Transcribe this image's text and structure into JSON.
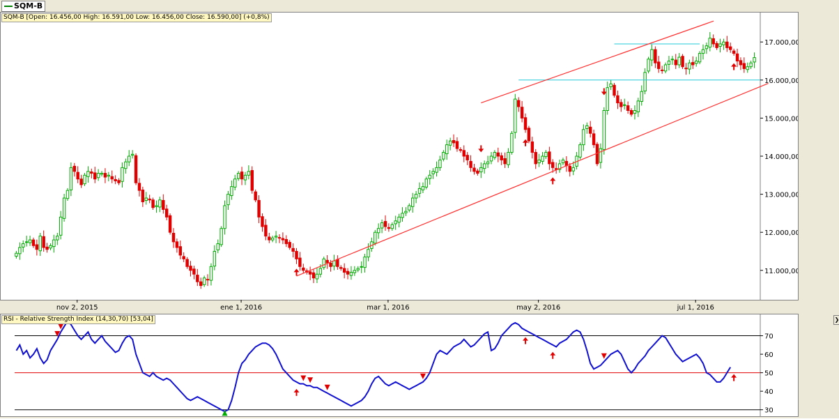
{
  "tab": {
    "label": "SQM-B",
    "color": "#008000"
  },
  "price_legend": "SQM-B [Open: 16.456,00  High: 16.591,00  Low: 16.456,00  Close: 16.590,00] (+0,8%)",
  "rsi_legend": "RSI - Relative Strength Index (14,30,70) [53,04]",
  "colors": {
    "up": "#00aa00",
    "down": "#e00000",
    "channel": "#ff3030",
    "support": "#20c8d8",
    "rsi": "#1010d0",
    "rsi_mid": "#e00000",
    "rsi_band": "#000000",
    "arrow": "#e00000",
    "arrow_up_rsi": "#00aa00"
  },
  "chart_data": [
    {
      "type": "candlestick",
      "series_name": "SQM-B",
      "y_ticks": [
        "11.000,00",
        "12.000,00",
        "13.000,00",
        "14.000,00",
        "15.000,00",
        "16.000,00",
        "17.000,00"
      ],
      "y_tick_values": [
        11000,
        12000,
        13000,
        14000,
        15000,
        16000,
        17000
      ],
      "ylim": [
        10300,
        17700
      ],
      "x_ticks": [
        "nov 2, 2015",
        "ene 1, 2016",
        "mar 1, 2016",
        "may 2, 2016",
        "jul 1, 2016"
      ],
      "x_tick_index": [
        18,
        66,
        109,
        153,
        199
      ],
      "n_candles": 217,
      "closes": [
        11450,
        11600,
        11700,
        11750,
        11800,
        11650,
        11550,
        11900,
        11600,
        11550,
        11650,
        11800,
        11900,
        12400,
        12900,
        13100,
        13700,
        13600,
        13400,
        13250,
        13500,
        13600,
        13550,
        13400,
        13550,
        13550,
        13450,
        13500,
        13400,
        13350,
        13300,
        13700,
        13850,
        14000,
        14050,
        13300,
        13100,
        12800,
        12900,
        12850,
        12650,
        12700,
        12850,
        12600,
        12400,
        12000,
        11750,
        11600,
        11400,
        11300,
        11100,
        11000,
        10900,
        10700,
        10600,
        10800,
        10750,
        11100,
        11500,
        11700,
        12100,
        12700,
        13000,
        13200,
        13400,
        13550,
        13400,
        13500,
        13600,
        13100,
        12850,
        12400,
        12150,
        11900,
        11800,
        11850,
        11900,
        11850,
        11800,
        11700,
        11600,
        11500,
        11300,
        11100,
        11000,
        10950,
        10900,
        10800,
        10900,
        11050,
        11300,
        11200,
        11100,
        11250,
        11100,
        11050,
        10950,
        10900,
        10950,
        11000,
        11050,
        11100,
        11350,
        11550,
        11750,
        12000,
        12100,
        12250,
        12150,
        12100,
        12200,
        12300,
        12400,
        12500,
        12550,
        12700,
        12900,
        13000,
        13150,
        13200,
        13400,
        13500,
        13600,
        13700,
        13900,
        14100,
        14300,
        14400,
        14350,
        14200,
        14150,
        14000,
        13900,
        13700,
        13600,
        13550,
        13700,
        13800,
        13850,
        14000,
        14100,
        14000,
        13900,
        13800,
        14100,
        14600,
        15500,
        15300,
        15000,
        14700,
        14400,
        14100,
        13800,
        13900,
        14000,
        14100,
        13800,
        13700,
        13650,
        13800,
        13900,
        13750,
        13600,
        13700,
        14000,
        14300,
        14700,
        14800,
        14600,
        14300,
        13800,
        14200,
        15200,
        15800,
        15900,
        15600,
        15400,
        15300,
        15350,
        15200,
        15100,
        15200,
        15450,
        15700,
        16200,
        16550,
        16800,
        16450,
        16300,
        16250,
        16400,
        16500,
        16550,
        16400,
        16600,
        16350,
        16300,
        16450,
        16400,
        16500,
        16700,
        16800,
        16900,
        17100,
        16950,
        16850,
        16950,
        17000,
        16850,
        16800,
        16700,
        16500,
        16400,
        16300,
        16350,
        16450,
        16590
      ],
      "support_line": {
        "from_index": 147,
        "value": 16000
      },
      "resistance_line": {
        "from_index": 175,
        "to_index": 200,
        "value": 16950
      },
      "channel_lower": {
        "from": [
          82,
          10850
        ],
        "to": [
          216,
          15950
        ]
      },
      "channel_upper": {
        "from": [
          136,
          15400
        ],
        "to": [
          200,
          17550
        ]
      },
      "down_arrows": [
        136,
        172
      ],
      "up_arrows": [
        82,
        149,
        157,
        210
      ]
    },
    {
      "type": "line",
      "series_name": "RSI - Relative Strength Index (14,30,70)",
      "last_value": 53.04,
      "y_ticks": [
        "30",
        "40",
        "50",
        "60",
        "70"
      ],
      "y_tick_values": [
        30,
        40,
        50,
        60,
        70
      ],
      "ylim": [
        28,
        80
      ],
      "levels": [
        30,
        50,
        70
      ],
      "values": [
        62,
        65,
        60,
        62,
        58,
        60,
        63,
        58,
        55,
        57,
        62,
        65,
        68,
        72,
        75,
        78,
        76,
        73,
        70,
        68,
        70,
        72,
        68,
        66,
        68,
        70,
        67,
        65,
        63,
        61,
        62,
        66,
        69,
        70,
        68,
        60,
        55,
        50,
        49,
        48,
        50,
        48,
        47,
        46,
        47,
        46,
        44,
        42,
        40,
        38,
        36,
        35,
        36,
        37,
        36,
        35,
        34,
        33,
        32,
        31,
        30,
        29,
        30,
        35,
        42,
        50,
        55,
        57,
        60,
        62,
        64,
        65,
        66,
        66,
        65,
        63,
        60,
        56,
        52,
        50,
        48,
        46,
        45,
        44,
        44,
        43,
        43,
        42,
        42,
        41,
        40,
        39,
        38,
        37,
        36,
        35,
        34,
        33,
        32,
        33,
        34,
        35,
        37,
        40,
        44,
        47,
        48,
        46,
        44,
        43,
        44,
        45,
        44,
        43,
        42,
        41,
        42,
        43,
        44,
        45,
        47,
        50,
        55,
        60,
        62,
        61,
        60,
        62,
        64,
        65,
        66,
        68,
        66,
        64,
        65,
        67,
        69,
        71,
        72,
        62,
        63,
        66,
        70,
        72,
        74,
        76,
        77,
        76,
        74,
        73,
        72,
        71,
        70,
        69,
        68,
        67,
        66,
        65,
        64,
        66,
        67,
        68,
        70,
        72,
        73,
        72,
        68,
        62,
        55,
        52,
        53,
        54,
        56,
        58,
        60,
        61,
        62,
        60,
        56,
        52,
        50,
        52,
        55,
        57,
        59,
        62,
        64,
        66,
        68,
        70,
        69,
        66,
        63,
        60,
        58,
        56,
        57,
        58,
        59,
        60,
        58,
        55,
        50,
        49,
        47,
        45,
        45,
        47,
        50,
        53
      ],
      "down_arrow_idx": [
        12,
        13,
        16,
        84,
        86,
        91,
        119,
        172
      ],
      "up_arrow_idx_extra": [
        61
      ],
      "up_arrows": [
        82,
        149,
        157,
        210
      ]
    }
  ]
}
